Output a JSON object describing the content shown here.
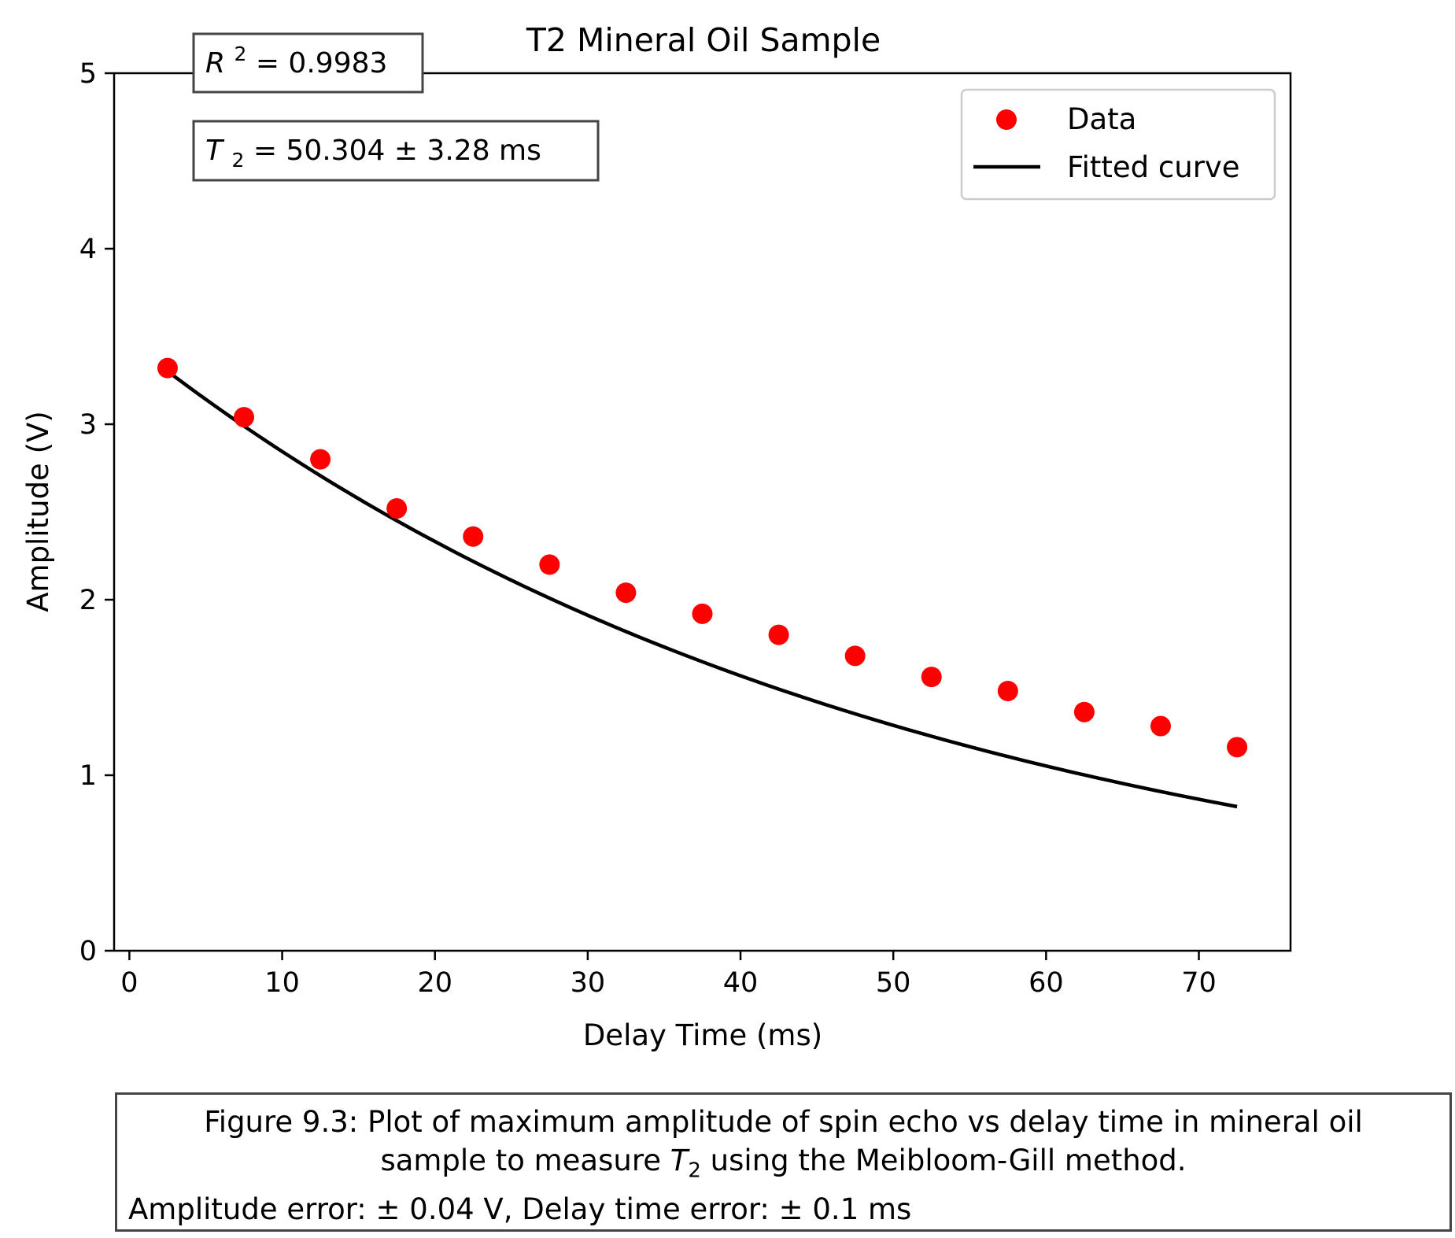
{
  "chart_data": {
    "type": "scatter",
    "title": "T2 Mineral Oil Sample",
    "xlabel": "Delay Time (ms)",
    "ylabel": "Amplitude (V)",
    "xlim": [
      -1,
      76
    ],
    "ylim": [
      0,
      5
    ],
    "xticks": [
      0,
      10,
      20,
      30,
      40,
      50,
      60,
      70
    ],
    "yticks": [
      0,
      1,
      2,
      3,
      4,
      5
    ],
    "grid": false,
    "legend_position": "top-right",
    "series": [
      {
        "name": "Data",
        "kind": "scatter",
        "color": "#ff0000",
        "x": [
          2.5,
          7.5,
          12.5,
          17.5,
          22.5,
          27.5,
          32.5,
          37.5,
          42.5,
          47.5,
          52.5,
          57.5,
          62.5,
          67.5,
          72.5
        ],
        "y": [
          3.32,
          3.04,
          2.8,
          2.52,
          2.36,
          2.2,
          2.04,
          1.92,
          1.8,
          1.68,
          1.56,
          1.48,
          1.36,
          1.28,
          1.16
        ]
      },
      {
        "name": "Fitted curve",
        "kind": "line",
        "color": "#000000",
        "model": "A*exp(-t/T2)",
        "A": 3.47,
        "T2": 50.304,
        "x_range": [
          2.5,
          72.5
        ]
      }
    ],
    "annotations": {
      "r2": {
        "symbol": "R",
        "sup": "2",
        "text": " = 0.9983"
      },
      "t2": {
        "symbol": "T",
        "sub": "2",
        "text": " = 50.304 ± 3.28 ms"
      }
    }
  },
  "caption": {
    "line1": "Figure 9.3: Plot of maximum amplitude of spin echo vs delay time in mineral oil",
    "line2_before": "sample to measure ",
    "line2_symbol": "T",
    "line2_sub": "2",
    "line2_after": " using the Meibloom-Gill method.",
    "line3": "Amplitude error: ± 0.04 V, Delay time error: ± 0.1 ms"
  }
}
